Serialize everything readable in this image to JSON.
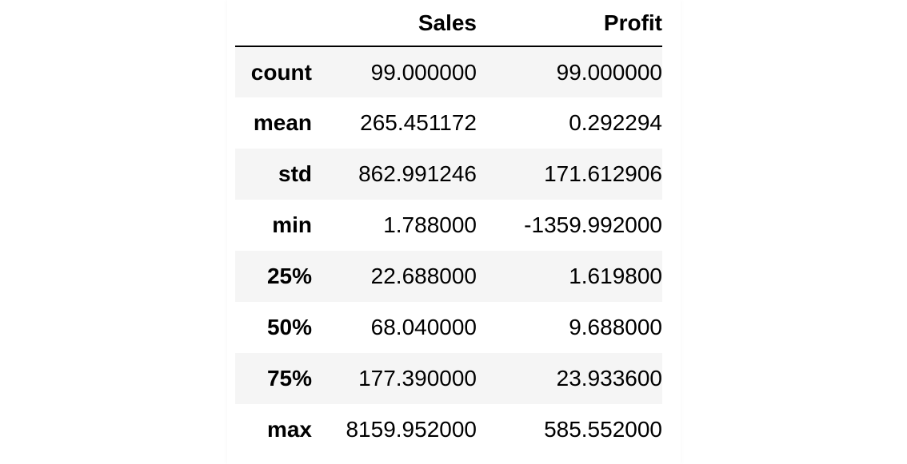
{
  "table": {
    "columns": [
      "",
      "Sales",
      "Profit"
    ],
    "rows": [
      {
        "label": "count",
        "sales": "99.000000",
        "profit": "99.000000"
      },
      {
        "label": "mean",
        "sales": "265.451172",
        "profit": "0.292294"
      },
      {
        "label": "std",
        "sales": "862.991246",
        "profit": "171.612906"
      },
      {
        "label": "min",
        "sales": "1.788000",
        "profit": "-1359.992000"
      },
      {
        "label": "25%",
        "sales": "22.688000",
        "profit": "1.619800"
      },
      {
        "label": "50%",
        "sales": "68.040000",
        "profit": "9.688000"
      },
      {
        "label": "75%",
        "sales": "177.390000",
        "profit": "23.933600"
      },
      {
        "label": "max",
        "sales": "8159.952000",
        "profit": "585.552000"
      }
    ],
    "colors": {
      "stripe": "#f5f5f5",
      "header_rule": "#000000"
    }
  }
}
